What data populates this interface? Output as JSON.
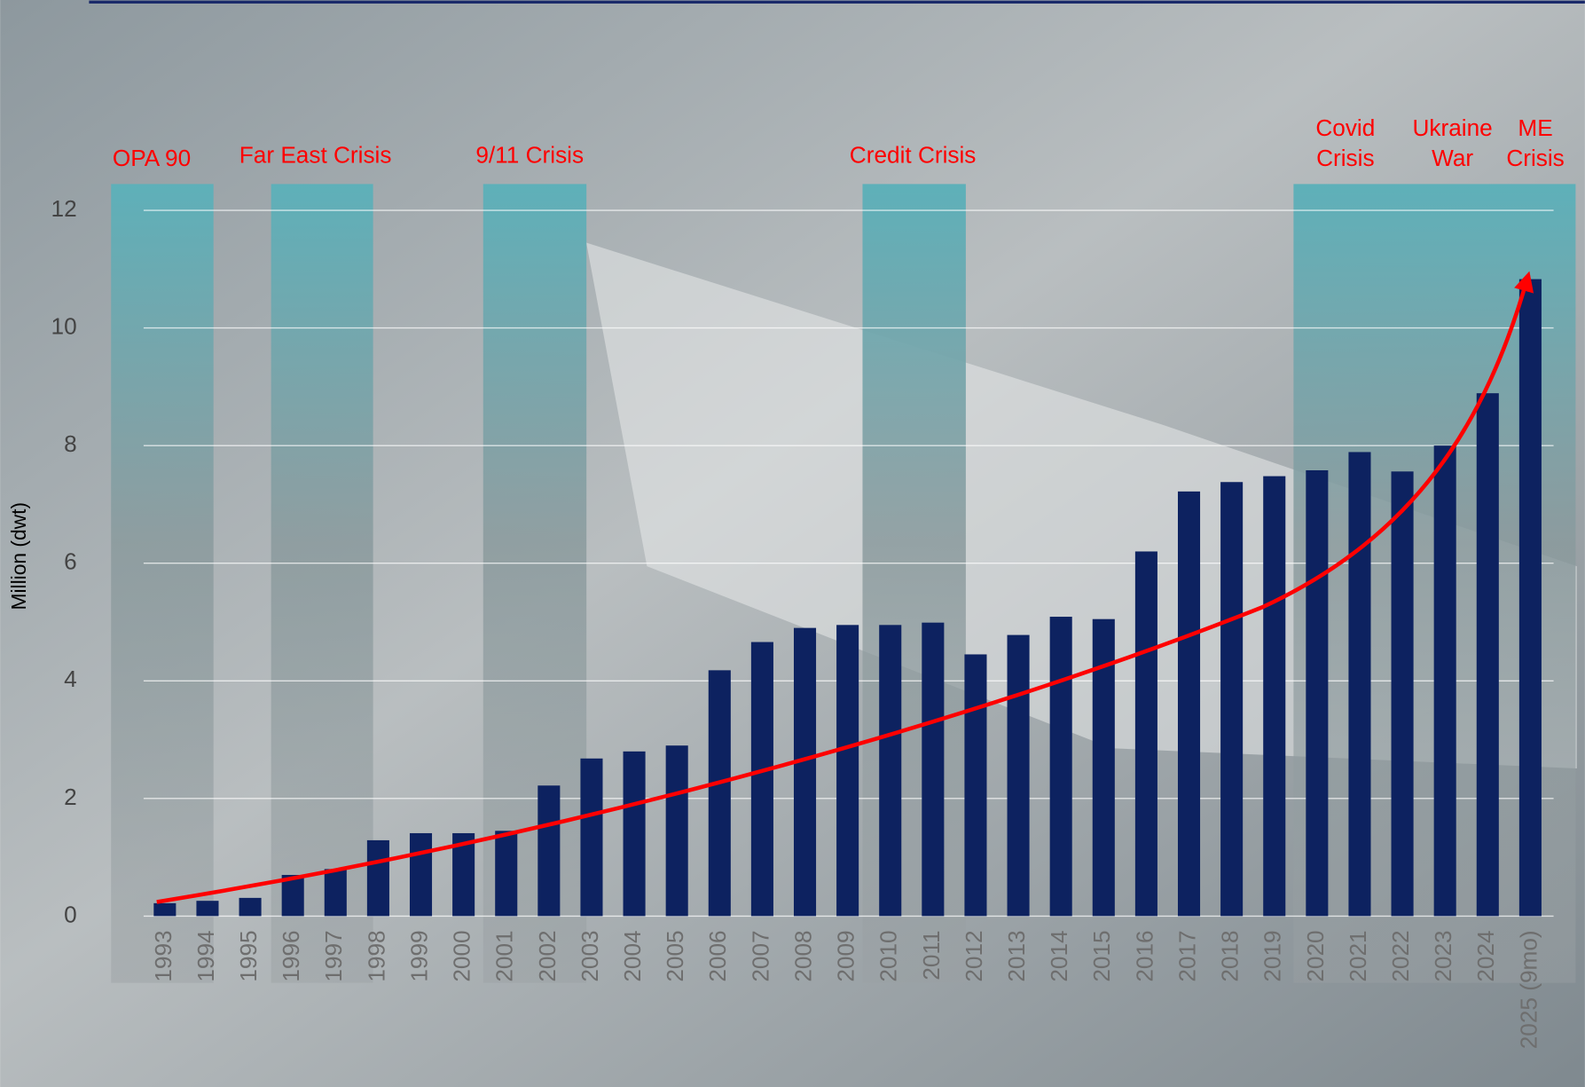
{
  "chart_data": {
    "type": "bar",
    "y_axis_label": "Million (dwt)",
    "categories": [
      "1993",
      "1994",
      "1995",
      "1996",
      "1997",
      "1998",
      "1999",
      "2000",
      "2001",
      "2002",
      "2003",
      "2004",
      "2005",
      "2006",
      "2007",
      "2008",
      "2009",
      "2010",
      "2011",
      "2012",
      "2013",
      "2014",
      "2015",
      "2016",
      "2017",
      "2018",
      "2019",
      "2020",
      "2021",
      "2022",
      "2023",
      "2024",
      "2025 (9mo)"
    ],
    "values": [
      0.22,
      0.26,
      0.31,
      0.7,
      0.8,
      1.29,
      1.41,
      1.41,
      1.45,
      2.22,
      2.68,
      2.8,
      2.9,
      4.18,
      4.66,
      4.9,
      4.95,
      4.95,
      4.99,
      4.45,
      4.78,
      5.09,
      5.05,
      6.2,
      7.22,
      7.38,
      7.48,
      7.58,
      7.89,
      7.56,
      8.0,
      8.89,
      10.83
    ],
    "color": "#0d2260",
    "ylim": [
      0,
      12
    ],
    "yticks": [
      0,
      2,
      4,
      6,
      8,
      10,
      12
    ],
    "grid": true,
    "annotations": [
      [
        "OPA 90"
      ],
      [
        "Far East Crisis"
      ],
      [
        "9/11 Crisis"
      ],
      [
        "Credit Crisis"
      ],
      [
        "Covid",
        "Crisis"
      ],
      [
        "Ukraine",
        "War"
      ],
      [
        "ME",
        "Crisis"
      ]
    ]
  }
}
